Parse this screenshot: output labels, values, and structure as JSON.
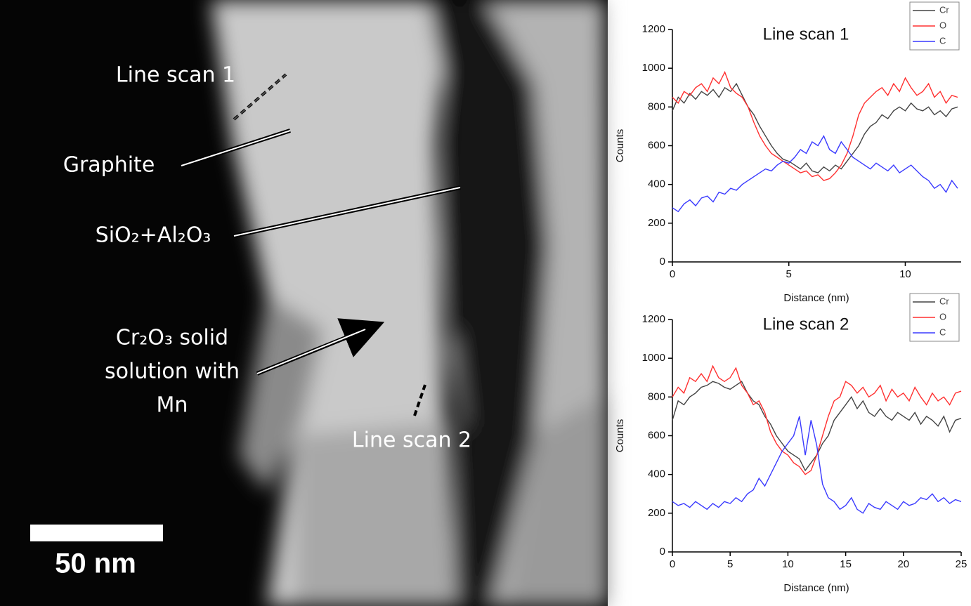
{
  "figure": {
    "line_scan_1": "Line scan 1",
    "graphite": "Graphite",
    "oxides": "SiO₂+Al₂O₃",
    "cr2o3": [
      "Cr₂O₃ solid",
      "solution with",
      "Mn"
    ],
    "line_scan_2": "Line scan 2",
    "scale_bar": "50 nm"
  },
  "chart_data": [
    {
      "type": "line",
      "title": "Line scan 1",
      "x_label": "Distance (nm)",
      "y_label": "Counts",
      "x": [
        0,
        0.25,
        0.5,
        0.75,
        1,
        1.25,
        1.5,
        1.75,
        2,
        2.25,
        2.5,
        2.75,
        3,
        3.25,
        3.5,
        3.75,
        4,
        4.25,
        4.5,
        4.75,
        5,
        5.25,
        5.5,
        5.75,
        6,
        6.25,
        6.5,
        6.75,
        7,
        7.25,
        7.5,
        7.75,
        8,
        8.25,
        8.5,
        8.75,
        9,
        9.25,
        9.5,
        9.75,
        10,
        10.25,
        10.5,
        10.75,
        11,
        11.25,
        11.5,
        11.75,
        12,
        12.25
      ],
      "series": [
        {
          "name": "Cr",
          "color": "#444444",
          "values": [
            780,
            850,
            820,
            870,
            840,
            880,
            860,
            890,
            850,
            900,
            880,
            920,
            860,
            800,
            760,
            700,
            650,
            600,
            560,
            530,
            520,
            500,
            480,
            510,
            470,
            460,
            490,
            470,
            500,
            480,
            520,
            560,
            600,
            660,
            700,
            720,
            760,
            740,
            780,
            800,
            780,
            820,
            790,
            780,
            800,
            760,
            780,
            750,
            790,
            800
          ]
        },
        {
          "name": "O",
          "color": "#ff3030",
          "values": [
            850,
            820,
            880,
            860,
            900,
            920,
            880,
            950,
            920,
            980,
            900,
            870,
            850,
            800,
            720,
            650,
            600,
            560,
            540,
            520,
            500,
            480,
            460,
            470,
            440,
            450,
            420,
            430,
            460,
            500,
            560,
            650,
            760,
            820,
            850,
            880,
            900,
            860,
            920,
            880,
            950,
            900,
            860,
            880,
            920,
            850,
            880,
            820,
            860,
            850
          ]
        },
        {
          "name": "C",
          "color": "#3a3aff",
          "values": [
            280,
            260,
            300,
            320,
            290,
            330,
            340,
            310,
            360,
            350,
            380,
            370,
            400,
            420,
            440,
            460,
            480,
            470,
            500,
            520,
            510,
            540,
            580,
            560,
            620,
            600,
            650,
            580,
            560,
            620,
            580,
            540,
            520,
            500,
            480,
            510,
            490,
            470,
            500,
            460,
            480,
            500,
            470,
            440,
            420,
            380,
            400,
            360,
            420,
            380
          ]
        }
      ],
      "xlim": [
        0,
        12.4
      ],
      "xticks": [
        0,
        5,
        10
      ],
      "ylim": [
        0,
        1200
      ],
      "yticks": [
        0,
        200,
        400,
        600,
        800,
        1000,
        1200
      ],
      "grid": false,
      "legend": "top-right"
    },
    {
      "type": "line",
      "title": "Line scan 2",
      "x_label": "Distance (nm)",
      "y_label": "Counts",
      "x": [
        0,
        0.5,
        1,
        1.5,
        2,
        2.5,
        3,
        3.5,
        4,
        4.5,
        5,
        5.5,
        6,
        6.5,
        7,
        7.5,
        8,
        8.5,
        9,
        9.5,
        10,
        10.5,
        11,
        11.5,
        12,
        12.5,
        13,
        13.5,
        14,
        14.5,
        15,
        15.5,
        16,
        16.5,
        17,
        17.5,
        18,
        18.5,
        19,
        19.5,
        20,
        20.5,
        21,
        21.5,
        22,
        22.5,
        23,
        23.5,
        24,
        24.5,
        25
      ],
      "series": [
        {
          "name": "Cr",
          "color": "#444444",
          "values": [
            680,
            780,
            760,
            800,
            820,
            850,
            860,
            880,
            870,
            850,
            840,
            860,
            880,
            820,
            780,
            760,
            700,
            660,
            600,
            560,
            520,
            500,
            480,
            420,
            460,
            500,
            560,
            600,
            680,
            720,
            760,
            800,
            740,
            780,
            720,
            700,
            740,
            700,
            680,
            720,
            700,
            680,
            720,
            660,
            700,
            680,
            650,
            700,
            620,
            680,
            690
          ]
        },
        {
          "name": "O",
          "color": "#ff3030",
          "values": [
            800,
            850,
            820,
            900,
            880,
            920,
            880,
            960,
            900,
            880,
            900,
            950,
            860,
            820,
            760,
            780,
            720,
            620,
            560,
            520,
            500,
            460,
            440,
            400,
            420,
            500,
            600,
            700,
            780,
            800,
            880,
            860,
            820,
            850,
            800,
            820,
            860,
            780,
            840,
            800,
            820,
            780,
            850,
            800,
            760,
            820,
            780,
            800,
            760,
            820,
            830
          ]
        },
        {
          "name": "C",
          "color": "#3a3aff",
          "values": [
            260,
            240,
            250,
            230,
            260,
            240,
            220,
            250,
            230,
            260,
            250,
            280,
            260,
            300,
            320,
            380,
            340,
            400,
            460,
            520,
            560,
            600,
            700,
            500,
            680,
            550,
            350,
            280,
            260,
            220,
            240,
            280,
            220,
            200,
            250,
            230,
            220,
            260,
            240,
            220,
            260,
            240,
            250,
            280,
            270,
            300,
            260,
            280,
            250,
            270,
            260
          ]
        }
      ],
      "xlim": [
        0,
        25
      ],
      "xticks": [
        0,
        5,
        10,
        15,
        20,
        25
      ],
      "ylim": [
        0,
        1200
      ],
      "yticks": [
        0,
        200,
        400,
        600,
        800,
        1000,
        1200
      ],
      "grid": false,
      "legend": "top-right"
    }
  ]
}
